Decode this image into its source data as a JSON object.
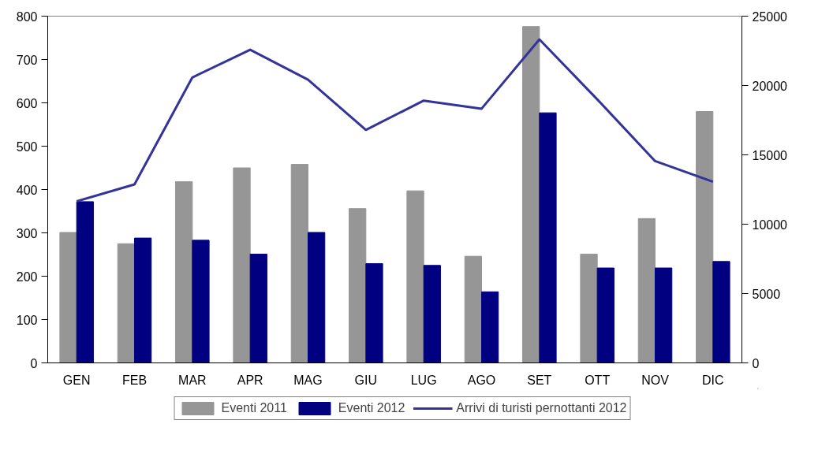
{
  "chart_data": {
    "type": "bar",
    "categories": [
      "GEN",
      "FEB",
      "MAR",
      "APR",
      "MAG",
      "GIU",
      "LUG",
      "AGO",
      "SET",
      "OTT",
      "NOV",
      "DIC"
    ],
    "series": [
      {
        "name": "Eventi 2011",
        "color": "#969696",
        "values": [
          301,
          275,
          418,
          450,
          458,
          356,
          397,
          246,
          776,
          251,
          333,
          580
        ]
      },
      {
        "name": "Eventi 2012",
        "color": "#000080",
        "values": [
          372,
          288,
          283,
          251,
          301,
          229,
          225,
          164,
          577,
          219,
          219,
          234
        ]
      },
      {
        "name": "Arrivi di turisti pernottanti 2012",
        "type": "line",
        "axis": "y2",
        "color": "#333399",
        "values": [
          11650,
          12870,
          20580,
          22580,
          20420,
          16800,
          18910,
          18330,
          23320,
          19000,
          14550,
          13060
        ]
      }
    ],
    "ylim": [
      0,
      800
    ],
    "yticks": [
      0,
      100,
      200,
      300,
      400,
      500,
      600,
      700,
      800
    ],
    "y2lim": [
      0,
      25000
    ],
    "y2ticks": [
      0,
      5000,
      10000,
      15000,
      20000,
      25000
    ],
    "grid": false,
    "legend": "bottom",
    "marker": "none",
    "line_style": "solid"
  }
}
